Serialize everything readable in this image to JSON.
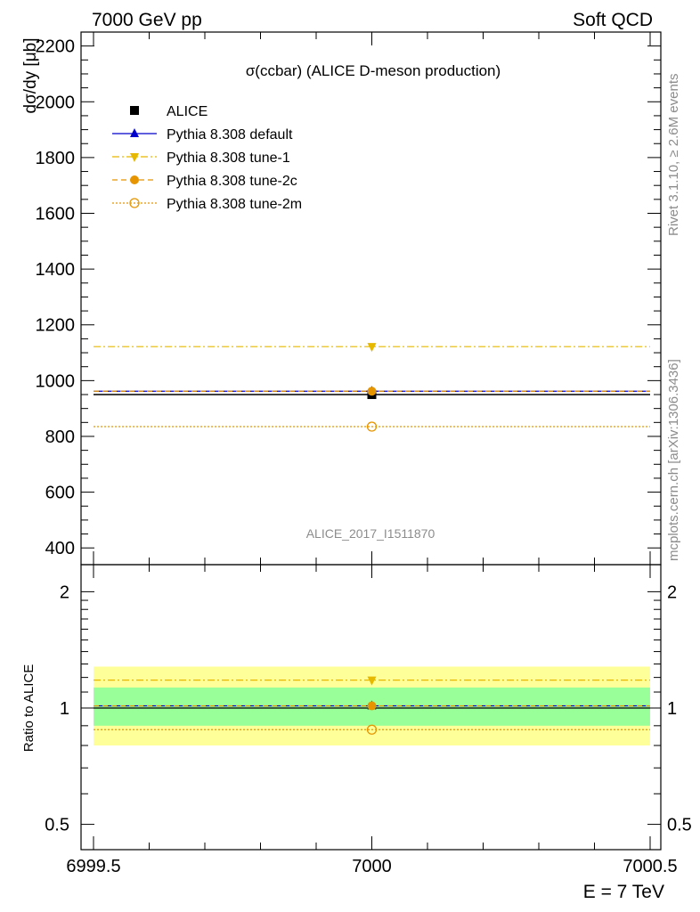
{
  "header": {
    "left": "7000 GeV pp",
    "right": "Soft QCD"
  },
  "side": {
    "rivet": "Rivet 3.1.10, ≥ 2.6M events",
    "mcplots": "mcplots.cern.ch [arXiv:1306.3436]"
  },
  "chart_data": [
    {
      "type": "scatter",
      "title": "σ(ccbar) (ALICE D-meson production)",
      "ylabel": "dσ/dy [μb]",
      "watermark": "ALICE_2017_I1511870",
      "x": [
        7000
      ],
      "xlim": [
        6999.5,
        7000.5
      ],
      "ylim": [
        340,
        2250
      ],
      "yticks": [
        400,
        600,
        800,
        1000,
        1200,
        1400,
        1600,
        1800,
        2000,
        2200
      ],
      "legend_position": "top-left",
      "series": [
        {
          "name": "ALICE",
          "values": [
            950
          ],
          "color": "#000000",
          "marker": "square",
          "line": "none"
        },
        {
          "name": "Pythia 8.308 default",
          "values": [
            962
          ],
          "color": "#0000cc",
          "marker": "triangle-up",
          "line": "solid"
        },
        {
          "name": "Pythia 8.308 tune-1",
          "values": [
            1122
          ],
          "color": "#e6b800",
          "marker": "triangle-down",
          "line": "dashdot"
        },
        {
          "name": "Pythia 8.308 tune-2c",
          "values": [
            962
          ],
          "color": "#e69500",
          "marker": "circle",
          "line": "dashed"
        },
        {
          "name": "Pythia 8.308 tune-2m",
          "values": [
            835
          ],
          "color": "#e69500",
          "marker": "circle-open",
          "line": "dotted"
        }
      ]
    },
    {
      "type": "scatter",
      "ylabel": "Ratio to ALICE",
      "xlabel": "E = 7 TeV",
      "x": [
        7000
      ],
      "xlim": [
        6999.5,
        7000.5
      ],
      "xticks": [
        "6999.5",
        "7000",
        "7000.5"
      ],
      "ylim": [
        0.43,
        2.35
      ],
      "log_y": true,
      "yticks": [
        "0.5",
        "1",
        "2"
      ],
      "bands": [
        {
          "lower": 0.8,
          "upper": 1.28,
          "color": "#ffff99"
        },
        {
          "lower": 0.9,
          "upper": 1.13,
          "color": "#99ff99"
        }
      ],
      "series": [
        {
          "name": "Pythia 8.308 default",
          "values": [
            1.013
          ],
          "color": "#0000cc",
          "marker": "triangle-up",
          "line": "solid"
        },
        {
          "name": "Pythia 8.308 tune-1",
          "values": [
            1.181
          ],
          "color": "#e6b800",
          "marker": "triangle-down",
          "line": "dashdot"
        },
        {
          "name": "Pythia 8.308 tune-2c",
          "values": [
            1.013
          ],
          "color": "#e69500",
          "marker": "circle",
          "line": "dashed"
        },
        {
          "name": "Pythia 8.308 tune-2m",
          "values": [
            0.879
          ],
          "color": "#e69500",
          "marker": "circle-open",
          "line": "dotted"
        }
      ]
    }
  ]
}
